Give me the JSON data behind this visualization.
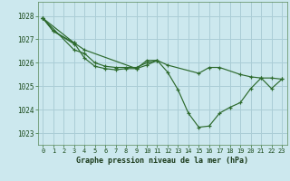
{
  "background_color": "#cce8ee",
  "grid_color": "#aacdd6",
  "line_color": "#2d6a2d",
  "title": "Graphe pression niveau de la mer (hPa)",
  "xlim": [
    -0.5,
    23.5
  ],
  "ylim": [
    1022.5,
    1028.6
  ],
  "yticks": [
    1023,
    1024,
    1025,
    1026,
    1027,
    1028
  ],
  "xticks": [
    0,
    1,
    2,
    3,
    4,
    5,
    6,
    7,
    8,
    9,
    10,
    11,
    12,
    13,
    14,
    15,
    16,
    17,
    18,
    19,
    20,
    21,
    22,
    23
  ],
  "series": [
    {
      "x": [
        0,
        1,
        3,
        4,
        5,
        6,
        7,
        8,
        9,
        10,
        11,
        12,
        13,
        14,
        15,
        16,
        17,
        18,
        19,
        20,
        21,
        22,
        23
      ],
      "y": [
        1027.9,
        1027.35,
        1026.85,
        1026.2,
        1025.85,
        1025.75,
        1025.7,
        1025.75,
        1025.75,
        1025.9,
        1026.1,
        1025.6,
        1024.85,
        1023.85,
        1023.25,
        1023.3,
        1023.85,
        1024.1,
        1024.3,
        1024.9,
        1025.35,
        1024.9,
        1025.3
      ]
    },
    {
      "x": [
        0,
        3,
        4,
        9,
        10,
        11,
        12,
        15,
        16,
        17,
        19,
        20,
        21,
        22,
        23
      ],
      "y": [
        1027.9,
        1026.85,
        1026.55,
        1025.75,
        1026.1,
        1026.1,
        1025.9,
        1025.55,
        1025.8,
        1025.8,
        1025.5,
        1025.4,
        1025.35,
        1025.35,
        1025.3
      ]
    },
    {
      "x": [
        0,
        3,
        4,
        5,
        6,
        7,
        8,
        9,
        10,
        11
      ],
      "y": [
        1027.9,
        1026.55,
        1026.4,
        1026.0,
        1025.85,
        1025.8,
        1025.8,
        1025.8,
        1026.0,
        1026.1
      ]
    },
    {
      "x": [
        0,
        1,
        3
      ],
      "y": [
        1027.9,
        1027.35,
        1026.8
      ]
    }
  ]
}
